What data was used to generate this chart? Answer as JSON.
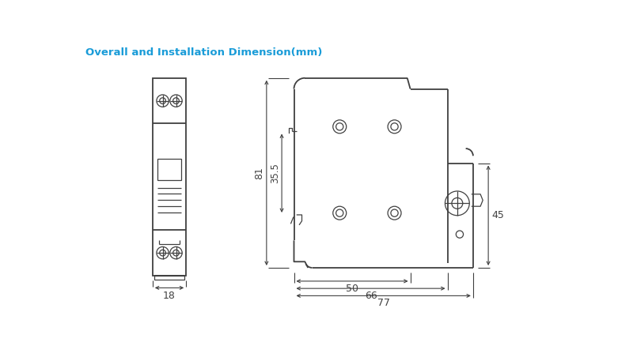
{
  "title": "Overall and Installation Dimension(mm)",
  "title_color": "#1a9cd8",
  "title_fontsize": 9.5,
  "bg_color": "#ffffff",
  "line_color": "#404040",
  "dim_color": "#404040",
  "dimensions": {
    "dim_81": "81",
    "dim_35_5": "35.5",
    "dim_45": "45",
    "dim_50": "50",
    "dim_66": "66",
    "dim_77": "77",
    "dim_18": "18"
  }
}
